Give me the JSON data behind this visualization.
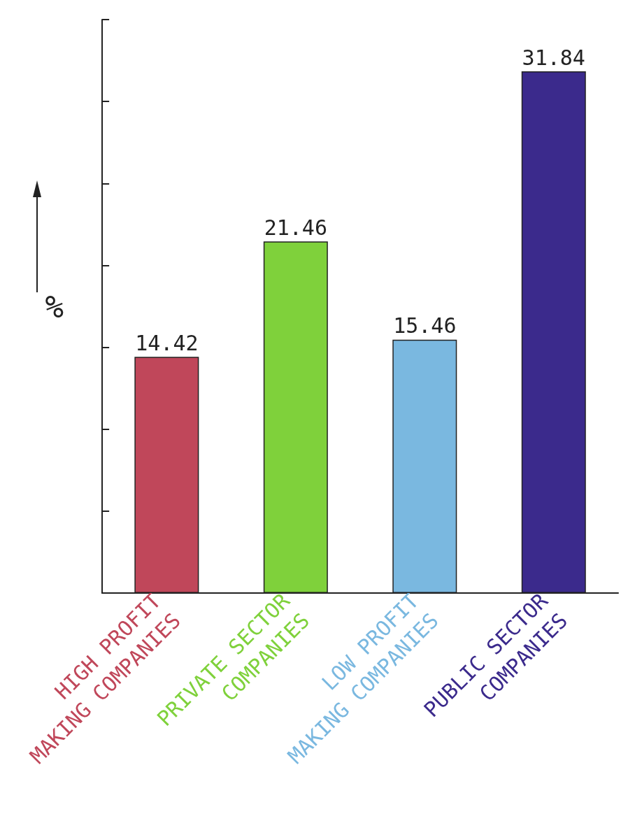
{
  "chart_data": {
    "type": "bar",
    "ylabel": "%",
    "categories": [
      "HIGH PROFIT\nMAKING COMPANIES",
      "PRIVATE SECTOR\nCOMPANIES",
      "LOW PROFIT\nMAKING COMPANIES",
      "PUBLIC SECTOR\nCOMPANIES"
    ],
    "values": [
      14.42,
      21.46,
      15.46,
      31.84
    ],
    "colors": [
      "#c0475a",
      "#7fd13b",
      "#7ab8e0",
      "#3b2a8c"
    ],
    "tick_labels": "x",
    "data_labels": true
  }
}
